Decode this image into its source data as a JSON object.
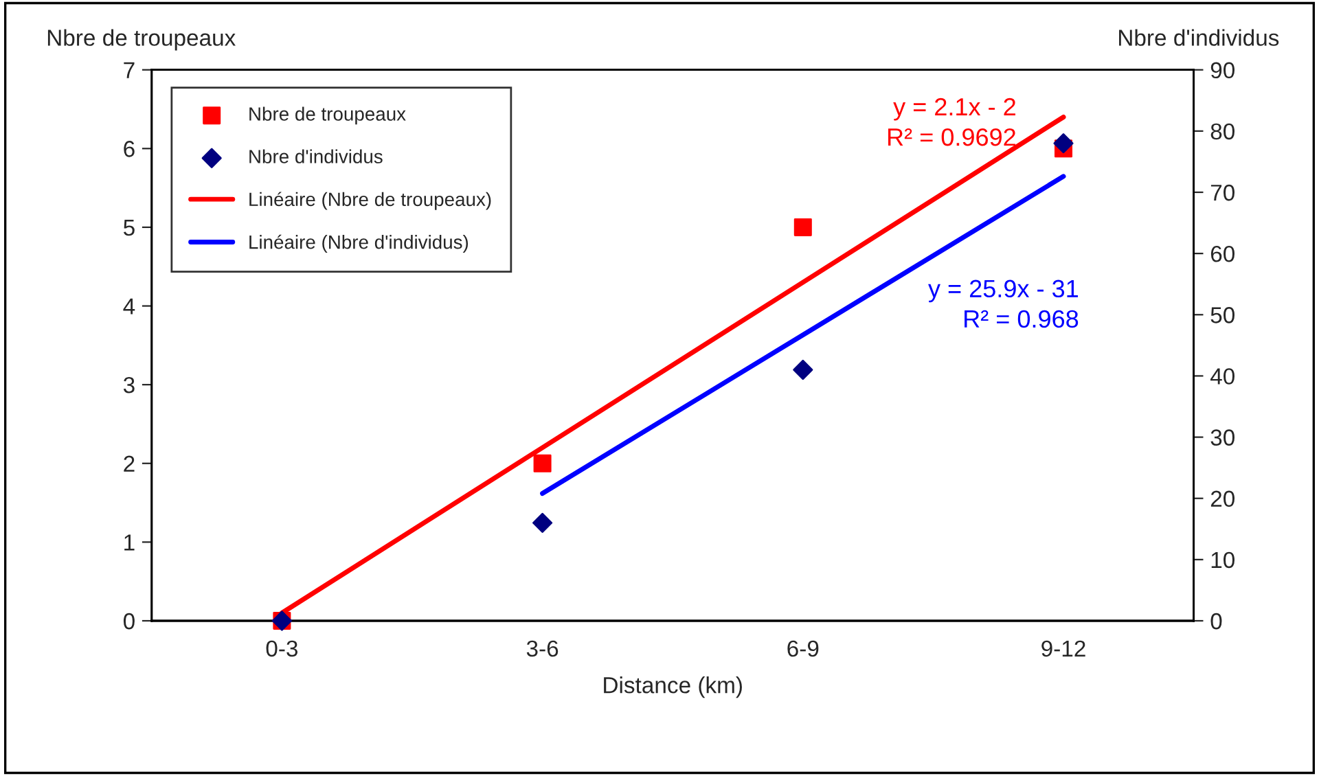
{
  "chart_data": {
    "type": "scatter",
    "categories": [
      "0-3",
      "3-6",
      "6-9",
      "9-12"
    ],
    "xlabel": "Distance (km)",
    "ylabel": "Nbre de troupeaux",
    "y2label": "Nbre d'individus",
    "series": [
      {
        "name": "Nbre de troupeaux",
        "marker": "square",
        "color": "#ff0000",
        "values": [
          0,
          2,
          5,
          6
        ]
      },
      {
        "name": "Nbre d'individus",
        "marker": "diamond",
        "color": "#000080",
        "axis": "y2",
        "values": [
          0,
          16,
          41,
          78
        ]
      },
      {
        "name": "Linéaire (Nbre de troupeaux)",
        "type": "line",
        "color": "#ff0000",
        "values": [
          0.1,
          2.2,
          4.3,
          6.4
        ]
      },
      {
        "name": "Linéaire (Nbre d'individus)",
        "type": "line",
        "color": "#0000ff",
        "axis": "y2",
        "values": [
          null,
          20.8,
          46.7,
          72.6
        ]
      }
    ],
    "annotations": [
      "y = 2.1x - 2\nR² = 0.9692",
      "y = 25.9x - 31\nR² = 0.968"
    ],
    "ylim": [
      0,
      7
    ],
    "yticks": [
      0,
      1,
      2,
      3,
      4,
      5,
      6,
      7
    ],
    "y2lim": [
      0,
      90
    ],
    "y2ticks": [
      0,
      10,
      20,
      30,
      40,
      50,
      60,
      70,
      80,
      90
    ],
    "legend": "top left",
    "grid": false
  }
}
